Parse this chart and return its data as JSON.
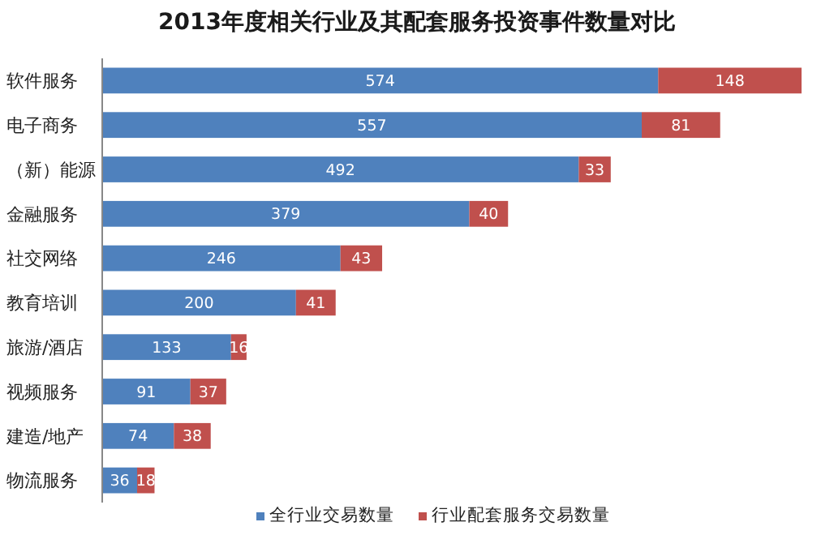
{
  "chart_data": {
    "type": "bar",
    "orientation": "horizontal",
    "stacked": true,
    "title": "2013年度相关行业及其配套服务投资事件数量对比",
    "categories": [
      "软件服务",
      "电子商务",
      "（新）能源",
      "金融服务",
      "社交网络",
      "教育培训",
      "旅游/酒店",
      "视频服务",
      "建造/地产",
      "物流服务"
    ],
    "series": [
      {
        "name": "全行业交易数量",
        "color": "#4f81bd",
        "values": [
          574,
          557,
          492,
          379,
          246,
          200,
          133,
          91,
          74,
          36
        ]
      },
      {
        "name": "行业配套服务交易数量",
        "color": "#c0504d",
        "values": [
          148,
          81,
          33,
          40,
          43,
          41,
          16,
          37,
          38,
          18
        ]
      }
    ],
    "data_labels": true,
    "legend": "bottom",
    "grid": false
  }
}
